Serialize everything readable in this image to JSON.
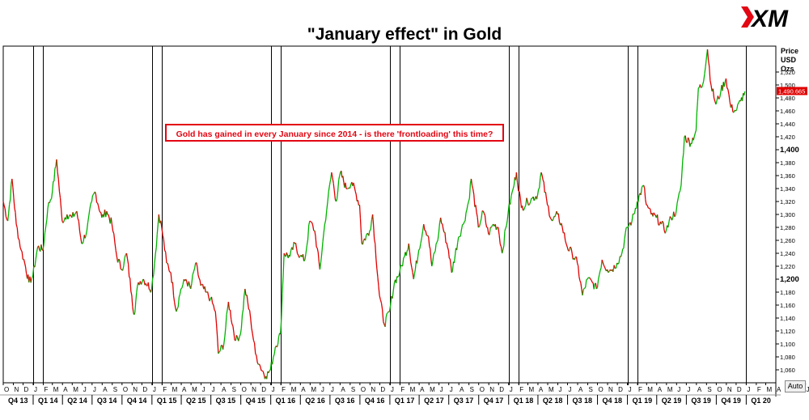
{
  "brand": {
    "logo_text": "XM"
  },
  "annotation": "Gold has gained in every January since 2014 - is there 'frontloading' this time?",
  "price_axis": {
    "header": [
      "Price",
      "USD",
      "Ozs"
    ],
    "current_price_label": "1,490.665",
    "auto_button": "Auto"
  },
  "colors": {
    "up": "#00b300",
    "down": "#e00000",
    "marker": "#e00000",
    "annotation": "#e30613",
    "grid_border": "#000000"
  },
  "chart_data": {
    "type": "line",
    "title": "\"January effect\" in Gold",
    "ylabel": "Price USD Ozs",
    "ylim": [
      1040,
      1560
    ],
    "y_ticks": [
      {
        "value": 1060,
        "label": "1,060",
        "major": false
      },
      {
        "value": 1080,
        "label": "1,080",
        "major": false
      },
      {
        "value": 1100,
        "label": "1,100",
        "major": false
      },
      {
        "value": 1120,
        "label": "1,120",
        "major": false
      },
      {
        "value": 1140,
        "label": "1,140",
        "major": false
      },
      {
        "value": 1160,
        "label": "1,160",
        "major": false
      },
      {
        "value": 1180,
        "label": "1,180",
        "major": false
      },
      {
        "value": 1200,
        "label": "1,200",
        "major": true
      },
      {
        "value": 1220,
        "label": "1,220",
        "major": false
      },
      {
        "value": 1240,
        "label": "1,240",
        "major": false
      },
      {
        "value": 1260,
        "label": "1,260",
        "major": false
      },
      {
        "value": 1280,
        "label": "1,280",
        "major": false
      },
      {
        "value": 1300,
        "label": "1,300",
        "major": false
      },
      {
        "value": 1320,
        "label": "1,320",
        "major": false
      },
      {
        "value": 1340,
        "label": "1,340",
        "major": false
      },
      {
        "value": 1360,
        "label": "1,360",
        "major": false
      },
      {
        "value": 1380,
        "label": "1,380",
        "major": false
      },
      {
        "value": 1400,
        "label": "1,400",
        "major": true
      },
      {
        "value": 1420,
        "label": "1,420",
        "major": false
      },
      {
        "value": 1440,
        "label": "1,440",
        "major": false
      },
      {
        "value": 1460,
        "label": "1,460",
        "major": false
      },
      {
        "value": 1480,
        "label": "1,480",
        "major": false
      },
      {
        "value": 1500,
        "label": "1,500",
        "major": false
      },
      {
        "value": 1520,
        "label": "1,520",
        "major": false
      }
    ],
    "current_price": 1490.665,
    "x_range": [
      "2013-10-01",
      "2020-04-01"
    ],
    "month_labels": [
      "O",
      "N",
      "D",
      "J",
      "F",
      "M",
      "A",
      "M",
      "J",
      "J",
      "A",
      "S",
      "O",
      "N",
      "D",
      "J",
      "F",
      "M",
      "A",
      "M",
      "J",
      "J",
      "A",
      "S",
      "O",
      "N",
      "D",
      "J",
      "F",
      "M",
      "A",
      "M",
      "J",
      "J",
      "A",
      "S",
      "O",
      "N",
      "D",
      "J",
      "F",
      "M",
      "A",
      "M",
      "J",
      "J",
      "A",
      "S",
      "O",
      "N",
      "D",
      "J",
      "F",
      "M",
      "A",
      "M",
      "J",
      "J",
      "A",
      "S",
      "O",
      "N",
      "D",
      "J",
      "F",
      "M",
      "A",
      "M",
      "J",
      "J",
      "A",
      "S",
      "O",
      "N",
      "D",
      "J",
      "F",
      "M",
      "A",
      "M",
      "J",
      "J",
      "A",
      "S",
      "O",
      "N",
      "D",
      "J",
      "F",
      "M",
      "A"
    ],
    "quarter_labels": [
      "Q4 13",
      "Q1 14",
      "Q2 14",
      "Q3 14",
      "Q4 14",
      "Q1 15",
      "Q2 15",
      "Q3 15",
      "Q4 15",
      "Q1 16",
      "Q2 16",
      "Q3 16",
      "Q4 16",
      "Q1 17",
      "Q2 17",
      "Q3 17",
      "Q4 17",
      "Q1 18",
      "Q2 18",
      "Q3 18",
      "Q4 18",
      "Q1 19",
      "Q2 19",
      "Q3 19",
      "Q4 19",
      "Q1 20"
    ],
    "january_markers": [
      "2014-01-01",
      "2014-02-01",
      "2015-01-01",
      "2015-02-01",
      "2016-01-01",
      "2016-02-01",
      "2017-01-01",
      "2017-02-01",
      "2018-01-01",
      "2018-02-01",
      "2019-01-01",
      "2019-02-01",
      "2020-01-01"
    ],
    "series": [
      {
        "points": [
          [
            "2013-10-01",
            1320
          ],
          [
            "2013-10-15",
            1290
          ],
          [
            "2013-10-28",
            1355
          ],
          [
            "2013-11-10",
            1285
          ],
          [
            "2013-11-25",
            1245
          ],
          [
            "2013-12-06",
            1225
          ],
          [
            "2013-12-19",
            1195
          ],
          [
            "2013-12-31",
            1205
          ],
          [
            "2014-01-15",
            1250
          ],
          [
            "2014-01-31",
            1245
          ],
          [
            "2014-02-15",
            1310
          ],
          [
            "2014-03-01",
            1335
          ],
          [
            "2014-03-14",
            1385
          ],
          [
            "2014-03-31",
            1290
          ],
          [
            "2014-04-15",
            1300
          ],
          [
            "2014-04-30",
            1295
          ],
          [
            "2014-05-15",
            1305
          ],
          [
            "2014-05-30",
            1255
          ],
          [
            "2014-06-15",
            1275
          ],
          [
            "2014-06-30",
            1320
          ],
          [
            "2014-07-10",
            1335
          ],
          [
            "2014-07-31",
            1295
          ],
          [
            "2014-08-15",
            1305
          ],
          [
            "2014-08-31",
            1285
          ],
          [
            "2014-09-15",
            1235
          ],
          [
            "2014-09-30",
            1215
          ],
          [
            "2014-10-15",
            1240
          ],
          [
            "2014-10-31",
            1175
          ],
          [
            "2014-11-07",
            1145
          ],
          [
            "2014-11-20",
            1195
          ],
          [
            "2014-12-05",
            1200
          ],
          [
            "2014-12-31",
            1185
          ],
          [
            "2015-01-12",
            1240
          ],
          [
            "2015-01-22",
            1300
          ],
          [
            "2015-01-31",
            1280
          ],
          [
            "2015-02-15",
            1225
          ],
          [
            "2015-02-28",
            1210
          ],
          [
            "2015-03-17",
            1150
          ],
          [
            "2015-03-31",
            1185
          ],
          [
            "2015-04-15",
            1200
          ],
          [
            "2015-04-30",
            1185
          ],
          [
            "2015-05-15",
            1225
          ],
          [
            "2015-05-31",
            1190
          ],
          [
            "2015-06-15",
            1180
          ],
          [
            "2015-06-30",
            1170
          ],
          [
            "2015-07-15",
            1150
          ],
          [
            "2015-07-24",
            1085
          ],
          [
            "2015-08-10",
            1100
          ],
          [
            "2015-08-24",
            1165
          ],
          [
            "2015-09-15",
            1105
          ],
          [
            "2015-09-30",
            1115
          ],
          [
            "2015-10-14",
            1185
          ],
          [
            "2015-10-31",
            1140
          ],
          [
            "2015-11-15",
            1085
          ],
          [
            "2015-11-30",
            1065
          ],
          [
            "2015-12-17",
            1050
          ],
          [
            "2015-12-31",
            1060
          ],
          [
            "2016-01-15",
            1095
          ],
          [
            "2016-01-31",
            1115
          ],
          [
            "2016-02-11",
            1240
          ],
          [
            "2016-02-29",
            1235
          ],
          [
            "2016-03-15",
            1255
          ],
          [
            "2016-03-31",
            1235
          ],
          [
            "2016-04-15",
            1230
          ],
          [
            "2016-04-30",
            1290
          ],
          [
            "2016-05-15",
            1275
          ],
          [
            "2016-05-31",
            1215
          ],
          [
            "2016-06-15",
            1285
          ],
          [
            "2016-06-24",
            1320
          ],
          [
            "2016-07-06",
            1365
          ],
          [
            "2016-07-20",
            1320
          ],
          [
            "2016-08-02",
            1365
          ],
          [
            "2016-08-20",
            1340
          ],
          [
            "2016-09-06",
            1350
          ],
          [
            "2016-09-30",
            1315
          ],
          [
            "2016-10-07",
            1255
          ],
          [
            "2016-10-31",
            1275
          ],
          [
            "2016-11-09",
            1300
          ],
          [
            "2016-11-30",
            1175
          ],
          [
            "2016-12-15",
            1130
          ],
          [
            "2016-12-31",
            1150
          ],
          [
            "2017-01-15",
            1195
          ],
          [
            "2017-01-31",
            1210
          ],
          [
            "2017-02-15",
            1235
          ],
          [
            "2017-02-28",
            1255
          ],
          [
            "2017-03-15",
            1200
          ],
          [
            "2017-03-31",
            1245
          ],
          [
            "2017-04-15",
            1285
          ],
          [
            "2017-04-30",
            1265
          ],
          [
            "2017-05-10",
            1220
          ],
          [
            "2017-05-31",
            1270
          ],
          [
            "2017-06-06",
            1295
          ],
          [
            "2017-06-30",
            1245
          ],
          [
            "2017-07-10",
            1210
          ],
          [
            "2017-07-31",
            1265
          ],
          [
            "2017-08-15",
            1285
          ],
          [
            "2017-08-31",
            1320
          ],
          [
            "2017-09-08",
            1355
          ],
          [
            "2017-09-30",
            1280
          ],
          [
            "2017-10-15",
            1305
          ],
          [
            "2017-10-31",
            1270
          ],
          [
            "2017-11-15",
            1285
          ],
          [
            "2017-11-30",
            1280
          ],
          [
            "2017-12-12",
            1240
          ],
          [
            "2017-12-31",
            1305
          ],
          [
            "2018-01-15",
            1340
          ],
          [
            "2018-01-25",
            1365
          ],
          [
            "2018-02-09",
            1310
          ],
          [
            "2018-02-28",
            1320
          ],
          [
            "2018-03-15",
            1325
          ],
          [
            "2018-03-31",
            1330
          ],
          [
            "2018-04-11",
            1365
          ],
          [
            "2018-04-30",
            1315
          ],
          [
            "2018-05-15",
            1290
          ],
          [
            "2018-05-31",
            1300
          ],
          [
            "2018-06-15",
            1280
          ],
          [
            "2018-06-30",
            1250
          ],
          [
            "2018-07-15",
            1240
          ],
          [
            "2018-07-31",
            1225
          ],
          [
            "2018-08-16",
            1175
          ],
          [
            "2018-08-31",
            1200
          ],
          [
            "2018-09-15",
            1195
          ],
          [
            "2018-09-28",
            1185
          ],
          [
            "2018-10-15",
            1230
          ],
          [
            "2018-10-31",
            1215
          ],
          [
            "2018-11-15",
            1215
          ],
          [
            "2018-11-30",
            1225
          ],
          [
            "2018-12-15",
            1240
          ],
          [
            "2018-12-31",
            1280
          ],
          [
            "2019-01-15",
            1290
          ],
          [
            "2019-01-31",
            1320
          ],
          [
            "2019-02-20",
            1345
          ],
          [
            "2019-02-28",
            1315
          ],
          [
            "2019-03-15",
            1300
          ],
          [
            "2019-03-31",
            1295
          ],
          [
            "2019-04-15",
            1285
          ],
          [
            "2019-04-30",
            1275
          ],
          [
            "2019-05-15",
            1295
          ],
          [
            "2019-05-31",
            1305
          ],
          [
            "2019-06-15",
            1345
          ],
          [
            "2019-06-25",
            1420
          ],
          [
            "2019-07-15",
            1410
          ],
          [
            "2019-07-31",
            1430
          ],
          [
            "2019-08-07",
            1495
          ],
          [
            "2019-08-20",
            1500
          ],
          [
            "2019-09-04",
            1555
          ],
          [
            "2019-09-15",
            1500
          ],
          [
            "2019-09-30",
            1470
          ],
          [
            "2019-10-15",
            1490
          ],
          [
            "2019-10-31",
            1510
          ],
          [
            "2019-11-15",
            1465
          ],
          [
            "2019-11-30",
            1460
          ],
          [
            "2019-12-15",
            1475
          ],
          [
            "2019-12-28",
            1490
          ]
        ]
      }
    ]
  }
}
